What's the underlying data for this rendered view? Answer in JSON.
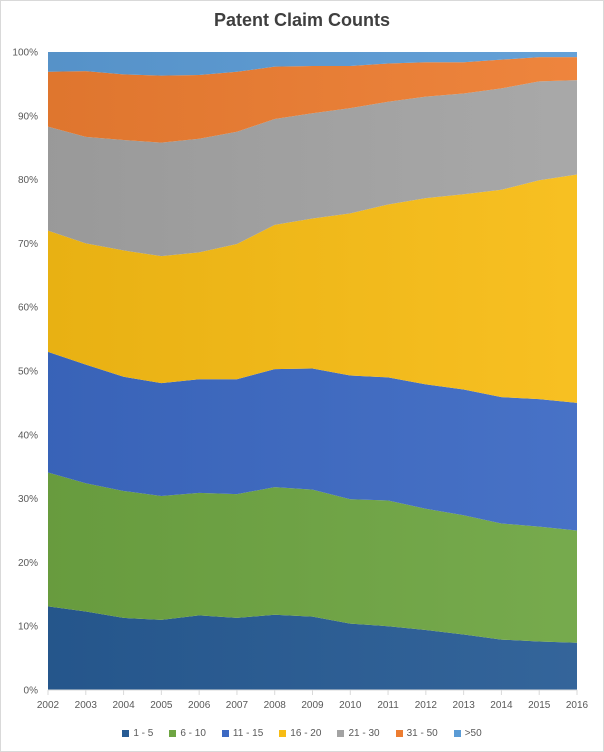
{
  "chart_data": {
    "type": "area",
    "stacked": "percent",
    "title": "Patent Claim Counts",
    "xlabel": "",
    "ylabel": "",
    "ylim": [
      0,
      1
    ],
    "y_ticks": [
      "0%",
      "10%",
      "20%",
      "30%",
      "40%",
      "50%",
      "60%",
      "70%",
      "80%",
      "90%",
      "100%"
    ],
    "x": [
      "2002",
      "2003",
      "2004",
      "2005",
      "2006",
      "2007",
      "2008",
      "2009",
      "2010",
      "2011",
      "2012",
      "2013",
      "2014",
      "2015",
      "2016"
    ],
    "legend_position": "bottom",
    "grid": false,
    "series": [
      {
        "name": "1 - 5",
        "color": "#275b94",
        "values": [
          13.1,
          12.3,
          11.3,
          11.0,
          11.7,
          11.3,
          11.8,
          11.5,
          10.4,
          10.0,
          9.4,
          8.7,
          7.9,
          7.6,
          7.4
        ]
      },
      {
        "name": "6 - 10",
        "color": "#6ea542",
        "values": [
          21.0,
          20.1,
          19.9,
          19.4,
          19.2,
          19.4,
          20.0,
          19.9,
          19.5,
          19.7,
          19.0,
          18.7,
          18.2,
          18.0,
          17.6
        ]
      },
      {
        "name": "11 - 15",
        "color": "#3c69c3",
        "values": [
          18.9,
          18.6,
          17.9,
          17.7,
          17.8,
          18.0,
          18.5,
          19.0,
          19.4,
          19.3,
          19.5,
          19.7,
          19.8,
          20.0,
          20.0
        ]
      },
      {
        "name": "16 - 20",
        "color": "#f7bc14",
        "values": [
          19.0,
          19.0,
          19.8,
          19.9,
          19.9,
          21.2,
          22.6,
          23.5,
          25.4,
          27.1,
          29.2,
          30.6,
          32.5,
          34.3,
          35.8
        ]
      },
      {
        "name": "21 - 30",
        "color": "#a3a3a3",
        "values": [
          16.3,
          16.7,
          17.3,
          17.8,
          17.8,
          17.6,
          16.6,
          16.5,
          16.5,
          16.1,
          15.9,
          15.8,
          15.9,
          15.5,
          14.8
        ]
      },
      {
        "name": "31 - 50",
        "color": "#ed7d31",
        "values": [
          8.6,
          10.3,
          10.3,
          10.5,
          10.0,
          9.4,
          8.2,
          7.4,
          6.6,
          6.0,
          5.4,
          4.9,
          4.5,
          3.8,
          3.6
        ]
      },
      {
        "name": ">50",
        "color": "#5b9bd5",
        "values": [
          3.1,
          3.0,
          3.5,
          3.7,
          3.6,
          3.1,
          2.3,
          2.2,
          2.2,
          1.8,
          1.6,
          1.6,
          1.2,
          0.8,
          0.8
        ]
      }
    ]
  }
}
